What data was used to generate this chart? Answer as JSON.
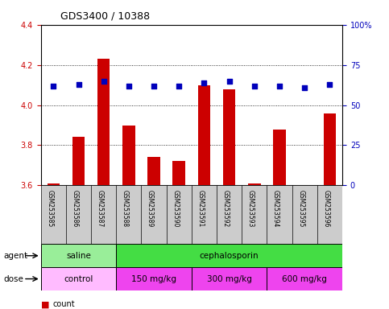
{
  "title": "GDS3400 / 10388",
  "samples": [
    "GSM253585",
    "GSM253586",
    "GSM253587",
    "GSM253588",
    "GSM253589",
    "GSM253590",
    "GSM253591",
    "GSM253592",
    "GSM253593",
    "GSM253594",
    "GSM253595",
    "GSM253596"
  ],
  "bar_values": [
    3.61,
    3.84,
    4.23,
    3.9,
    3.74,
    3.72,
    4.1,
    4.08,
    3.61,
    3.88,
    3.6,
    3.96
  ],
  "percentile_values": [
    62,
    63,
    65,
    62,
    62,
    62,
    64,
    65,
    62,
    62,
    61,
    63
  ],
  "bar_color": "#cc0000",
  "dot_color": "#0000bb",
  "ylim_left": [
    3.6,
    4.4
  ],
  "ylim_right": [
    0,
    100
  ],
  "yticks_left": [
    3.6,
    3.8,
    4.0,
    4.2,
    4.4
  ],
  "yticks_right": [
    0,
    25,
    50,
    75,
    100
  ],
  "ytick_labels_right": [
    "0",
    "25",
    "50",
    "75",
    "100%"
  ],
  "grid_values": [
    3.8,
    4.0,
    4.2
  ],
  "agent_labels": [
    {
      "text": "saline",
      "start": 0,
      "end": 3,
      "color": "#99ee99"
    },
    {
      "text": "cephalosporin",
      "start": 3,
      "end": 12,
      "color": "#44dd44"
    }
  ],
  "dose_labels": [
    {
      "text": "control",
      "start": 0,
      "end": 3,
      "color": "#ffbbff"
    },
    {
      "text": "150 mg/kg",
      "start": 3,
      "end": 6,
      "color": "#ee44ee"
    },
    {
      "text": "300 mg/kg",
      "start": 6,
      "end": 9,
      "color": "#ee44ee"
    },
    {
      "text": "600 mg/kg",
      "start": 9,
      "end": 12,
      "color": "#ee44ee"
    }
  ],
  "xlabel_color": "#cc0000",
  "ylabel_right_color": "#0000bb",
  "tick_bg_color": "#cccccc",
  "bar_width": 0.5
}
